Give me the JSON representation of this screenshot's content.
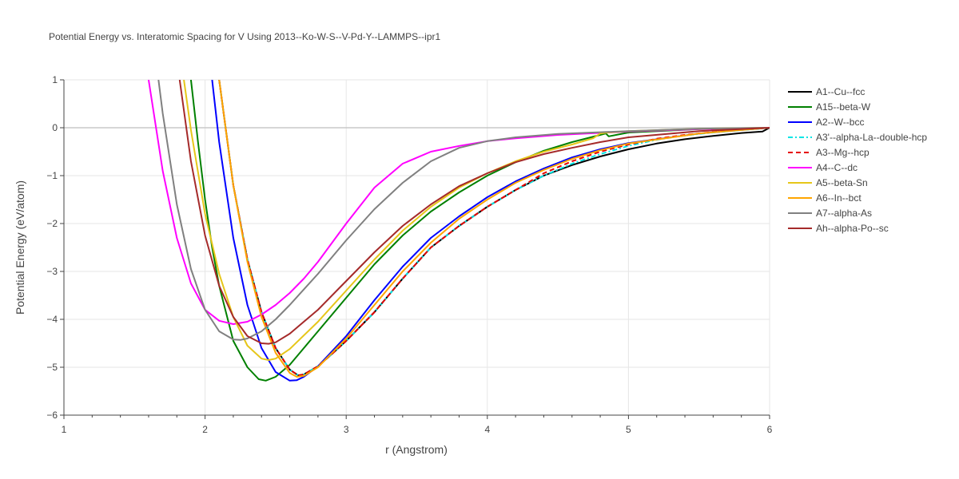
{
  "chart_data": {
    "type": "line",
    "title": "Potential Energy vs. Interatomic Spacing for V Using 2013--Ko-W-S--V-Pd-Y--LAMMPS--ipr1",
    "xlabel": "r (Angstrom)",
    "ylabel": "Potential Energy (eV/atom)",
    "xlim": [
      1,
      6
    ],
    "ylim": [
      -6,
      1
    ],
    "xticks": [
      1,
      2,
      3,
      4,
      5,
      6
    ],
    "yticks": [
      1,
      0,
      -1,
      -2,
      -3,
      -4,
      -5,
      -6
    ],
    "ytick_labels": [
      "1",
      "0",
      "−1",
      "−2",
      "−3",
      "−4",
      "−5",
      "−6"
    ],
    "grid": true,
    "legend_position": "right",
    "series": [
      {
        "name": "A1--Cu--fcc",
        "color": "#000000",
        "dash": "solid",
        "x": [
          2.1,
          2.2,
          2.3,
          2.4,
          2.5,
          2.6,
          2.66,
          2.7,
          2.8,
          2.9,
          3.0,
          3.2,
          3.4,
          3.6,
          3.8,
          4.0,
          4.2,
          4.4,
          4.6,
          4.8,
          5.0,
          5.2,
          5.4,
          5.6,
          5.8,
          5.95,
          6.0
        ],
        "y": [
          1.0,
          -1.2,
          -2.75,
          -3.85,
          -4.6,
          -5.05,
          -5.17,
          -5.15,
          -4.98,
          -4.72,
          -4.45,
          -3.85,
          -3.15,
          -2.5,
          -2.05,
          -1.65,
          -1.3,
          -1.0,
          -0.78,
          -0.6,
          -0.45,
          -0.33,
          -0.24,
          -0.17,
          -0.11,
          -0.08,
          0.0
        ]
      },
      {
        "name": "A15--beta-W",
        "color": "#008000",
        "dash": "solid",
        "x": [
          1.9,
          1.95,
          2.0,
          2.05,
          2.1,
          2.2,
          2.3,
          2.38,
          2.43,
          2.5,
          2.6,
          2.7,
          2.8,
          3.0,
          3.2,
          3.4,
          3.6,
          3.8,
          4.0,
          4.2,
          4.4,
          4.6,
          4.8,
          4.84,
          4.86,
          5.0,
          5.5,
          6.0
        ],
        "y": [
          1.0,
          -0.3,
          -1.5,
          -2.5,
          -3.3,
          -4.45,
          -5.0,
          -5.25,
          -5.28,
          -5.2,
          -4.95,
          -4.6,
          -4.25,
          -3.55,
          -2.85,
          -2.25,
          -1.75,
          -1.35,
          -1.0,
          -0.72,
          -0.48,
          -0.3,
          -0.15,
          -0.12,
          -0.18,
          -0.1,
          -0.03,
          0.0
        ]
      },
      {
        "name": "A2--W--bcc",
        "color": "#0000ff",
        "dash": "solid",
        "x": [
          2.05,
          2.1,
          2.2,
          2.3,
          2.4,
          2.5,
          2.6,
          2.65,
          2.7,
          2.8,
          3.0,
          3.2,
          3.4,
          3.6,
          3.8,
          4.0,
          4.2,
          4.4,
          4.6,
          4.8,
          5.0,
          5.5,
          6.0
        ],
        "y": [
          1.0,
          -0.3,
          -2.3,
          -3.7,
          -4.6,
          -5.1,
          -5.28,
          -5.27,
          -5.2,
          -4.98,
          -4.35,
          -3.6,
          -2.9,
          -2.3,
          -1.85,
          -1.45,
          -1.12,
          -0.85,
          -0.62,
          -0.45,
          -0.32,
          -0.12,
          0.0
        ]
      },
      {
        "name": "A3'--alpha-La--double-hcp",
        "color": "#00e5e5",
        "dash": "6,3,2,3",
        "x": [
          2.1,
          2.2,
          2.3,
          2.4,
          2.5,
          2.6,
          2.66,
          2.7,
          2.8,
          2.9,
          3.0,
          3.2,
          3.4,
          3.6,
          3.8,
          4.0,
          4.2,
          4.4,
          4.6,
          4.8,
          5.0,
          5.2,
          5.4,
          5.6,
          5.8,
          6.0
        ],
        "y": [
          1.0,
          -1.2,
          -2.75,
          -3.85,
          -4.6,
          -5.05,
          -5.17,
          -5.15,
          -4.98,
          -4.72,
          -4.45,
          -3.85,
          -3.15,
          -2.5,
          -2.05,
          -1.65,
          -1.3,
          -1.0,
          -0.75,
          -0.55,
          -0.38,
          -0.25,
          -0.16,
          -0.1,
          -0.05,
          0.0
        ]
      },
      {
        "name": "A3--Mg--hcp",
        "color": "#e60000",
        "dash": "6,4",
        "x": [
          2.1,
          2.2,
          2.3,
          2.4,
          2.5,
          2.6,
          2.66,
          2.7,
          2.8,
          2.9,
          3.0,
          3.2,
          3.4,
          3.6,
          3.8,
          4.0,
          4.2,
          4.4,
          4.6,
          4.8,
          5.0,
          5.2,
          5.4,
          5.6,
          5.8,
          6.0
        ],
        "y": [
          1.0,
          -1.2,
          -2.75,
          -3.85,
          -4.6,
          -5.05,
          -5.17,
          -5.15,
          -4.98,
          -4.72,
          -4.45,
          -3.85,
          -3.15,
          -2.5,
          -2.05,
          -1.65,
          -1.3,
          -0.95,
          -0.7,
          -0.5,
          -0.35,
          -0.23,
          -0.15,
          -0.09,
          -0.04,
          0.0
        ]
      },
      {
        "name": "A4--C--dc",
        "color": "#ff00ff",
        "dash": "solid",
        "x": [
          1.6,
          1.7,
          1.8,
          1.9,
          2.0,
          2.1,
          2.2,
          2.3,
          2.4,
          2.5,
          2.6,
          2.7,
          2.8,
          3.0,
          3.2,
          3.4,
          3.6,
          3.8,
          4.0,
          4.2,
          4.5,
          5.0,
          5.5,
          6.0
        ],
        "y": [
          1.0,
          -0.9,
          -2.3,
          -3.25,
          -3.8,
          -4.03,
          -4.1,
          -4.05,
          -3.9,
          -3.7,
          -3.45,
          -3.15,
          -2.8,
          -2.0,
          -1.25,
          -0.75,
          -0.5,
          -0.38,
          -0.28,
          -0.22,
          -0.15,
          -0.08,
          -0.03,
          0.0
        ]
      },
      {
        "name": "A5--beta-Sn",
        "color": "#e6c619",
        "dash": "solid",
        "x": [
          1.85,
          1.9,
          2.0,
          2.1,
          2.2,
          2.3,
          2.4,
          2.45,
          2.5,
          2.6,
          2.8,
          3.0,
          3.2,
          3.4,
          3.6,
          3.8,
          4.0,
          4.2,
          4.4,
          4.6,
          4.75,
          4.8,
          4.85,
          5.0,
          5.5,
          6.0
        ],
        "y": [
          1.0,
          -0.05,
          -1.8,
          -3.05,
          -3.95,
          -4.55,
          -4.82,
          -4.85,
          -4.82,
          -4.62,
          -4.05,
          -3.4,
          -2.75,
          -2.15,
          -1.65,
          -1.25,
          -0.95,
          -0.7,
          -0.5,
          -0.35,
          -0.22,
          -0.12,
          -0.1,
          -0.07,
          -0.02,
          0.0
        ]
      },
      {
        "name": "A6--In--bct",
        "color": "#ffa500",
        "dash": "solid",
        "x": [
          2.1,
          2.2,
          2.3,
          2.4,
          2.5,
          2.6,
          2.65,
          2.7,
          2.8,
          3.0,
          3.2,
          3.4,
          3.6,
          3.8,
          4.0,
          4.2,
          4.4,
          4.6,
          4.8,
          5.0,
          5.5,
          6.0
        ],
        "y": [
          1.0,
          -1.2,
          -2.8,
          -3.95,
          -4.7,
          -5.12,
          -5.2,
          -5.18,
          -5.0,
          -4.4,
          -3.7,
          -3.0,
          -2.4,
          -1.9,
          -1.5,
          -1.15,
          -0.88,
          -0.65,
          -0.47,
          -0.33,
          -0.12,
          0.0
        ]
      },
      {
        "name": "A7--alpha-As",
        "color": "#808080",
        "dash": "solid",
        "x": [
          1.67,
          1.7,
          1.8,
          1.9,
          2.0,
          2.1,
          2.2,
          2.25,
          2.3,
          2.4,
          2.5,
          2.6,
          2.8,
          3.0,
          3.2,
          3.4,
          3.6,
          3.8,
          4.0,
          4.2,
          4.5,
          5.0,
          5.5,
          6.0
        ],
        "y": [
          1.0,
          0.3,
          -1.6,
          -2.95,
          -3.8,
          -4.25,
          -4.42,
          -4.43,
          -4.4,
          -4.25,
          -4.0,
          -3.7,
          -3.05,
          -2.35,
          -1.7,
          -1.15,
          -0.7,
          -0.42,
          -0.28,
          -0.2,
          -0.13,
          -0.07,
          -0.02,
          0.0
        ]
      },
      {
        "name": "Ah--alpha-Po--sc",
        "color": "#a52a2a",
        "dash": "solid",
        "x": [
          1.82,
          1.9,
          2.0,
          2.1,
          2.2,
          2.3,
          2.4,
          2.45,
          2.5,
          2.6,
          2.8,
          3.0,
          3.2,
          3.4,
          3.6,
          3.8,
          4.0,
          4.2,
          4.4,
          4.6,
          4.8,
          5.0,
          5.5,
          6.0
        ],
        "y": [
          1.0,
          -0.7,
          -2.25,
          -3.3,
          -3.95,
          -4.35,
          -4.5,
          -4.51,
          -4.48,
          -4.3,
          -3.8,
          -3.2,
          -2.6,
          -2.05,
          -1.6,
          -1.22,
          -0.95,
          -0.72,
          -0.55,
          -0.42,
          -0.3,
          -0.2,
          -0.07,
          0.0
        ]
      }
    ]
  }
}
